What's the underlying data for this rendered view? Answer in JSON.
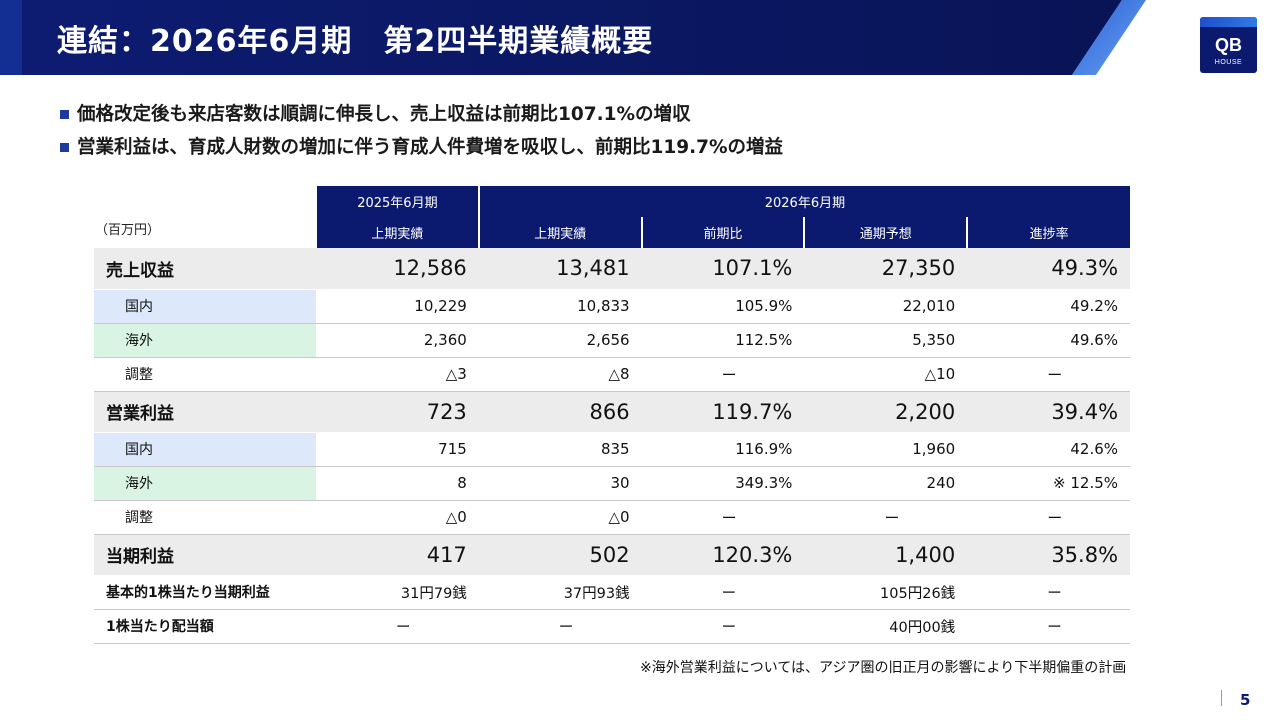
{
  "header": {
    "title": "連結：2026年6月期　第2四半期業績概要",
    "logo_main": "QB",
    "logo_sub": "HOUSE"
  },
  "bullets": [
    "価格改定後も来店客数は順調に伸長し、売上収益は前期比107.1%の増収",
    "営業利益は、育成人財数の増加に伴う育成人件費増を吸収し、前期比119.7%の増益"
  ],
  "table": {
    "unit": "（百万円）",
    "period_headers": [
      "2025年6月期",
      "2026年6月期"
    ],
    "columns": [
      "上期実績",
      "上期実績",
      "前期比",
      "通期予想",
      "進捗率"
    ],
    "rows": [
      {
        "label": "売上収益",
        "values": [
          "12,586",
          "13,481",
          "107.1%",
          "27,350",
          "49.3%"
        ]
      },
      {
        "label": "国内",
        "values": [
          "10,229",
          "10,833",
          "105.9%",
          "22,010",
          "49.2%"
        ]
      },
      {
        "label": "海外",
        "values": [
          "2,360",
          "2,656",
          "112.5%",
          "5,350",
          "49.6%"
        ]
      },
      {
        "label": "調整",
        "values": [
          "△3",
          "△8",
          "ー",
          "△10",
          "ー"
        ]
      },
      {
        "label": "営業利益",
        "values": [
          "723",
          "866",
          "119.7%",
          "2,200",
          "39.4%"
        ]
      },
      {
        "label": "国内",
        "values": [
          "715",
          "835",
          "116.9%",
          "1,960",
          "42.6%"
        ]
      },
      {
        "label": "海外",
        "values": [
          "8",
          "30",
          "349.3%",
          "240",
          "※ 12.5%"
        ]
      },
      {
        "label": "調整",
        "values": [
          "△0",
          "△0",
          "ー",
          "ー",
          "ー"
        ]
      },
      {
        "label": "当期利益",
        "values": [
          "417",
          "502",
          "120.3%",
          "1,400",
          "35.8%"
        ]
      },
      {
        "label": "基本的1株当たり当期利益",
        "values": [
          "31円79銭",
          "37円93銭",
          "ー",
          "105円26銭",
          "ー"
        ]
      },
      {
        "label": "1株当たり配当額",
        "values": [
          "ー",
          "ー",
          "ー",
          "40円00銭",
          "ー"
        ]
      }
    ]
  },
  "footnote": "※海外営業利益については、アジア圏の旧正月の影響により下半期偏重の計画",
  "page_number": "5",
  "colors": {
    "navy": "#0b1a6e",
    "domestic": "#dde9fb",
    "overseas": "#d9f4e3",
    "major_row": "#ececec"
  }
}
